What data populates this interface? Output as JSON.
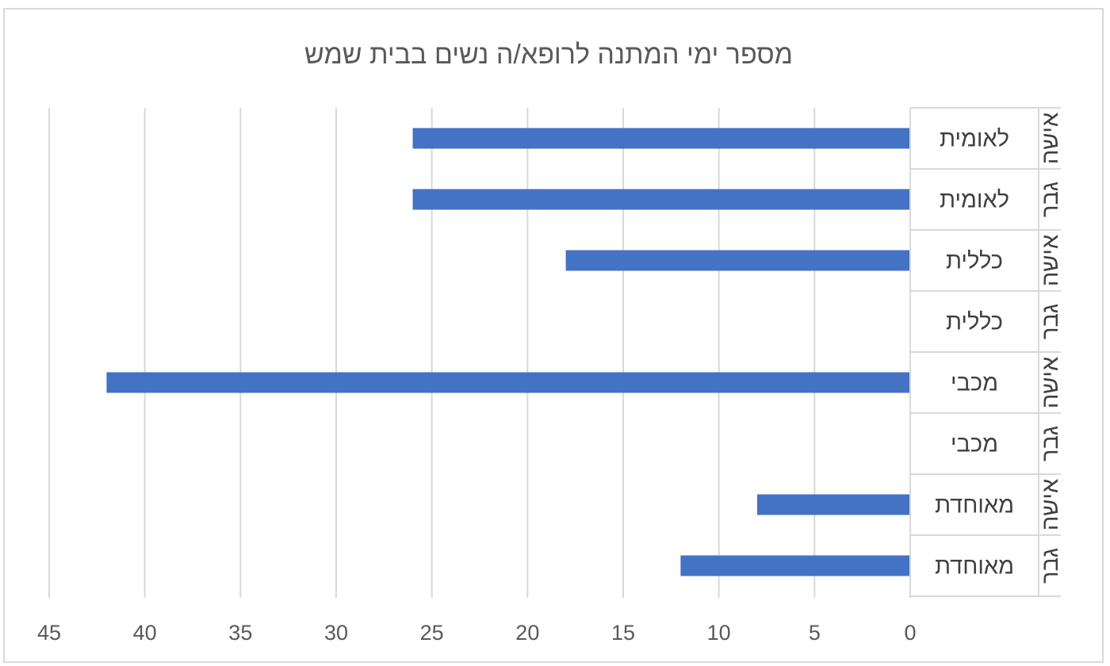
{
  "chart_data": {
    "type": "bar",
    "orientation": "horizontal",
    "title": "מספר ימי המתנה לרופא/ה נשים בבית שמש",
    "xlim": [
      0,
      45
    ],
    "x_ticks": [
      "45",
      "40",
      "35",
      "30",
      "25",
      "20",
      "15",
      "10",
      "5",
      "0"
    ],
    "x_axis_reversed": true,
    "grid": true,
    "bar_color": "#4472C4",
    "rows": [
      {
        "category": "לאומית",
        "group": "אישה",
        "value": 26
      },
      {
        "category": "לאומית",
        "group": "גבר",
        "value": 26
      },
      {
        "category": "כללית",
        "group": "אישה",
        "value": 18
      },
      {
        "category": "כללית",
        "group": "גבר",
        "value": 0
      },
      {
        "category": "מכבי",
        "group": "אישה",
        "value": 42
      },
      {
        "category": "מכבי",
        "group": "גבר",
        "value": 0
      },
      {
        "category": "מאוחדת",
        "group": "אישה",
        "value": 8
      },
      {
        "category": "מאוחדת",
        "group": "גבר",
        "value": 12
      }
    ]
  }
}
